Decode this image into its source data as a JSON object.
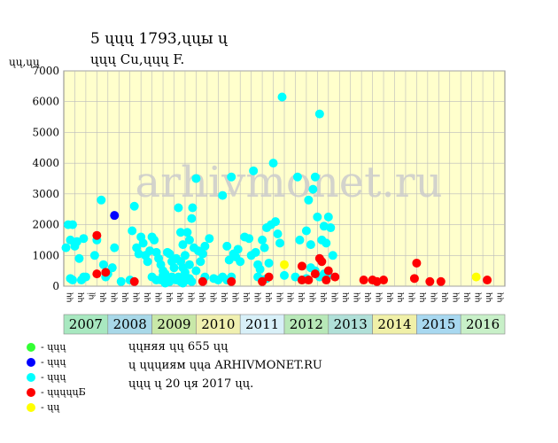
{
  "header": {
    "title_line1": "5 ųųų 1793,ųųы ų",
    "title_line2": "ųųų Cu,ųųų F.",
    "y_unit": "ųų,ųų"
  },
  "watermark": "arhivmonet.ru",
  "legend": [
    {
      "color": "#33ff33",
      "label": "- ųųų"
    },
    {
      "color": "#0000ff",
      "label": "- ųųų"
    },
    {
      "color": "#00ffff",
      "label": "- ųųų"
    },
    {
      "color": "#ff0000",
      "label": "- ųųųųųБ"
    },
    {
      "color": "#ffff00",
      "label": "- ųų"
    }
  ],
  "info": {
    "line1": "ųųняя ųų 655 ųų",
    "line2": "ų ųųųиям ųųа ARHIVMONET.RU",
    "line3": "ųųų ų 20 ųя 2017 ųų."
  },
  "colors": {
    "cyan": "#00ffff",
    "red": "#ff0000",
    "blue": "#0000ff",
    "yellow": "#ffff00",
    "green": "#33ff33",
    "plot_bg": "#ffffcc",
    "grid": "#bbbbbb"
  },
  "chart_data": {
    "type": "scatter",
    "ylabel": "ųų,ųų",
    "ylim": [
      0,
      7000
    ],
    "yticks": [
      0,
      1000,
      2000,
      3000,
      4000,
      5000,
      6000,
      7000
    ],
    "xlim": [
      2007,
      2017
    ],
    "grid": true,
    "tick_labels_month": [
      "ųų",
      "ųų",
      "ųį",
      "ųų",
      "ųų",
      "ųų",
      "ųų",
      "ųų",
      "ųų",
      "ųų",
      "ųų",
      "ųų",
      "ųų",
      "ųų",
      "ųų",
      "ųų",
      "ųų",
      "ųų",
      "ųų",
      "ųų",
      "ųų",
      "ųų",
      "ųų",
      "ųų",
      "ųų",
      "ųų",
      "ųų",
      "ųų",
      "ųų",
      "ųų",
      "ųų",
      "ųų",
      "ųų",
      "ųų",
      "ųų",
      "ųų",
      "ųų",
      "ųų",
      "ųų",
      "ųų"
    ],
    "years": [
      {
        "label": "2007",
        "color": "#a8e8c0"
      },
      {
        "label": "2008",
        "color": "#a8d8e8"
      },
      {
        "label": "2009",
        "color": "#c8e8a8"
      },
      {
        "label": "2010",
        "color": "#f0f0b0"
      },
      {
        "label": "2011",
        "color": "#d8f0f8"
      },
      {
        "label": "2012",
        "color": "#b8e8b8"
      },
      {
        "label": "2013",
        "color": "#b0e0d8"
      },
      {
        "label": "2014",
        "color": "#f0f0a8"
      },
      {
        "label": "2015",
        "color": "#a8d8f0"
      },
      {
        "label": "2016",
        "color": "#c8f0c8"
      }
    ],
    "series": [
      {
        "color": "#00ffff",
        "points": [
          [
            2007.05,
            1250
          ],
          [
            2007.1,
            2000
          ],
          [
            2007.15,
            1500
          ],
          [
            2007.2,
            2000
          ],
          [
            2007.25,
            1300
          ],
          [
            2007.3,
            1450
          ],
          [
            2007.35,
            900
          ],
          [
            2007.45,
            1550
          ],
          [
            2007.5,
            300
          ],
          [
            2007.15,
            250
          ],
          [
            2007.2,
            200
          ],
          [
            2007.4,
            200
          ],
          [
            2007.45,
            300
          ],
          [
            2007.7,
            1000
          ],
          [
            2007.75,
            1500
          ],
          [
            2007.85,
            2800
          ],
          [
            2007.9,
            700
          ],
          [
            2007.95,
            300
          ],
          [
            2008.0,
            400
          ],
          [
            2008.1,
            600
          ],
          [
            2008.15,
            1250
          ],
          [
            2008.3,
            150
          ],
          [
            2008.5,
            200
          ],
          [
            2008.55,
            1800
          ],
          [
            2008.6,
            2600
          ],
          [
            2008.65,
            1250
          ],
          [
            2008.7,
            1050
          ],
          [
            2008.75,
            1600
          ],
          [
            2008.8,
            1400
          ],
          [
            2008.85,
            1000
          ],
          [
            2008.9,
            800
          ],
          [
            2008.95,
            1150
          ],
          [
            2009.0,
            1600
          ],
          [
            2009.05,
            1500
          ],
          [
            2009.1,
            1100
          ],
          [
            2009.15,
            900
          ],
          [
            2009.2,
            700
          ],
          [
            2009.25,
            500
          ],
          [
            2009.3,
            400
          ],
          [
            2009.35,
            1100
          ],
          [
            2009.4,
            1050
          ],
          [
            2009.45,
            800
          ],
          [
            2009.5,
            600
          ],
          [
            2009.55,
            900
          ],
          [
            2009.2,
            200
          ],
          [
            2009.3,
            100
          ],
          [
            2009.4,
            150
          ],
          [
            2009.5,
            250
          ],
          [
            2009.6,
            300
          ],
          [
            2009.7,
            100
          ],
          [
            2009.8,
            200
          ],
          [
            2009.9,
            150
          ],
          [
            2009.0,
            300
          ],
          [
            2009.1,
            200
          ],
          [
            2009.25,
            350
          ],
          [
            2009.35,
            250
          ],
          [
            2009.45,
            300
          ],
          [
            2009.55,
            200
          ],
          [
            2009.65,
            150
          ],
          [
            2009.75,
            300
          ],
          [
            2009.85,
            250
          ],
          [
            2009.6,
            2550
          ],
          [
            2009.65,
            1750
          ],
          [
            2009.7,
            1350
          ],
          [
            2009.75,
            1000
          ],
          [
            2009.8,
            1750
          ],
          [
            2009.85,
            1500
          ],
          [
            2009.9,
            2200
          ],
          [
            2009.92,
            2550
          ],
          [
            2009.95,
            1250
          ],
          [
            2010.0,
            3500
          ],
          [
            2010.05,
            1150
          ],
          [
            2010.1,
            800
          ],
          [
            2010.15,
            1050
          ],
          [
            2010.2,
            1300
          ],
          [
            2010.3,
            1550
          ],
          [
            2009.65,
            800
          ],
          [
            2009.7,
            600
          ],
          [
            2009.75,
            450
          ],
          [
            2009.85,
            700
          ],
          [
            2010.0,
            500
          ],
          [
            2010.2,
            300
          ],
          [
            2010.4,
            250
          ],
          [
            2010.5,
            200
          ],
          [
            2010.6,
            300
          ],
          [
            2010.7,
            200
          ],
          [
            2010.8,
            300
          ],
          [
            2010.6,
            2950
          ],
          [
            2010.7,
            1300
          ],
          [
            2010.75,
            850
          ],
          [
            2010.8,
            3550
          ],
          [
            2010.85,
            1050
          ],
          [
            2010.9,
            950
          ],
          [
            2010.95,
            1200
          ],
          [
            2011.0,
            800
          ],
          [
            2011.1,
            1600
          ],
          [
            2011.2,
            1550
          ],
          [
            2011.25,
            1000
          ],
          [
            2011.3,
            3750
          ],
          [
            2011.35,
            1100
          ],
          [
            2011.4,
            700
          ],
          [
            2011.45,
            550
          ],
          [
            2011.5,
            1500
          ],
          [
            2011.55,
            1250
          ],
          [
            2011.6,
            1900
          ],
          [
            2011.65,
            750
          ],
          [
            2011.7,
            2000
          ],
          [
            2011.75,
            4000
          ],
          [
            2011.8,
            2100
          ],
          [
            2011.85,
            1700
          ],
          [
            2011.9,
            1400
          ],
          [
            2011.95,
            6150
          ],
          [
            2012.0,
            350
          ],
          [
            2011.4,
            300
          ],
          [
            2011.5,
            200
          ],
          [
            2011.6,
            250
          ],
          [
            2012.3,
            3550
          ],
          [
            2012.35,
            1500
          ],
          [
            2012.5,
            1800
          ],
          [
            2012.55,
            2800
          ],
          [
            2012.6,
            1350
          ],
          [
            2012.65,
            3150
          ],
          [
            2012.7,
            3550
          ],
          [
            2012.75,
            2250
          ],
          [
            2012.8,
            5600
          ],
          [
            2012.85,
            1500
          ],
          [
            2012.9,
            1950
          ],
          [
            2012.95,
            1400
          ],
          [
            2013.0,
            2250
          ],
          [
            2013.05,
            1900
          ],
          [
            2013.1,
            1000
          ],
          [
            2012.6,
            600
          ],
          [
            2012.7,
            500
          ],
          [
            2012.8,
            300
          ],
          [
            2012.9,
            400
          ],
          [
            2013.0,
            350
          ],
          [
            2012.4,
            200
          ],
          [
            2012.5,
            250
          ],
          [
            2012.25,
            300
          ]
        ]
      },
      {
        "color": "#0000ff",
        "points": [
          [
            2008.15,
            2300
          ]
        ]
      },
      {
        "color": "#ff0000",
        "points": [
          [
            2007.75,
            1650
          ],
          [
            2007.75,
            400
          ],
          [
            2007.95,
            450
          ],
          [
            2008.6,
            150
          ],
          [
            2010.15,
            150
          ],
          [
            2010.8,
            150
          ],
          [
            2011.5,
            150
          ],
          [
            2011.65,
            300
          ],
          [
            2012.4,
            650
          ],
          [
            2012.4,
            200
          ],
          [
            2012.55,
            200
          ],
          [
            2012.7,
            400
          ],
          [
            2012.8,
            900
          ],
          [
            2012.85,
            800
          ],
          [
            2012.95,
            200
          ],
          [
            2013.0,
            500
          ],
          [
            2013.15,
            300
          ],
          [
            2013.8,
            200
          ],
          [
            2014.0,
            200
          ],
          [
            2014.1,
            150
          ],
          [
            2014.25,
            200
          ],
          [
            2015.0,
            750
          ],
          [
            2014.95,
            250
          ],
          [
            2015.3,
            150
          ],
          [
            2015.55,
            150
          ],
          [
            2016.6,
            200
          ]
        ]
      },
      {
        "color": "#ffff00",
        "points": [
          [
            2012.0,
            700
          ],
          [
            2016.35,
            300
          ]
        ]
      }
    ]
  }
}
